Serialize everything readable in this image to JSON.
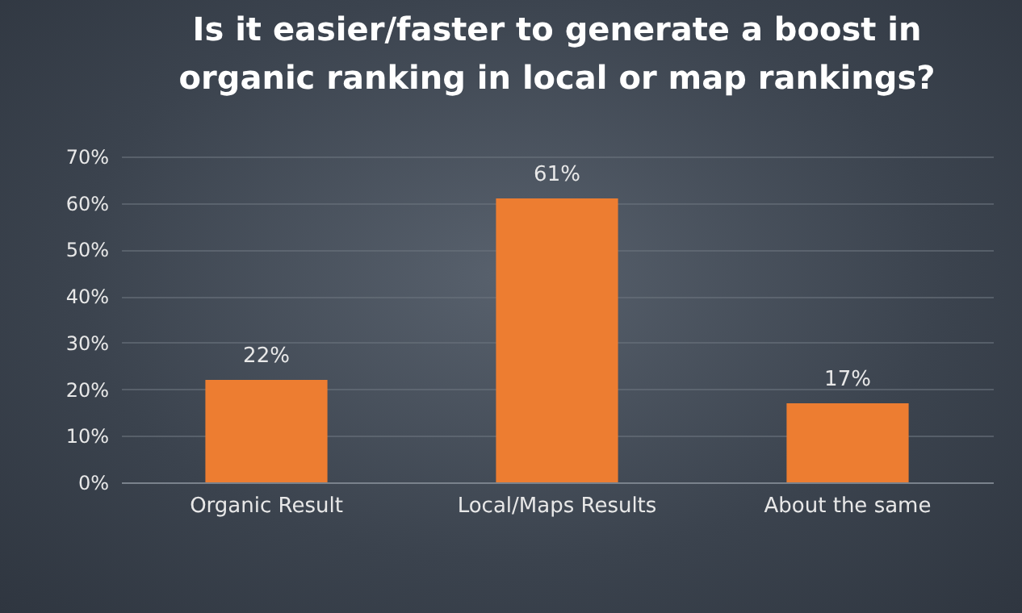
{
  "chart_data": {
    "type": "bar",
    "title": "Is it easier/faster to generate a boost in organic ranking in local or map rankings?",
    "categories": [
      "Organic Result",
      "Local/Maps Results",
      "About the same"
    ],
    "values": [
      22,
      61,
      17
    ],
    "value_labels": [
      "22%",
      "61%",
      "17%"
    ],
    "color": "#ed7d31",
    "ylim": [
      0,
      70
    ],
    "yticks": [
      {
        "value": 0,
        "label": "0%"
      },
      {
        "value": 10,
        "label": "10%"
      },
      {
        "value": 20,
        "label": "20%"
      },
      {
        "value": 30,
        "label": "30%"
      },
      {
        "value": 40,
        "label": "40%"
      },
      {
        "value": 50,
        "label": "50%"
      },
      {
        "value": 60,
        "label": "60%"
      },
      {
        "value": 70,
        "label": "70%"
      }
    ],
    "grid": true
  }
}
